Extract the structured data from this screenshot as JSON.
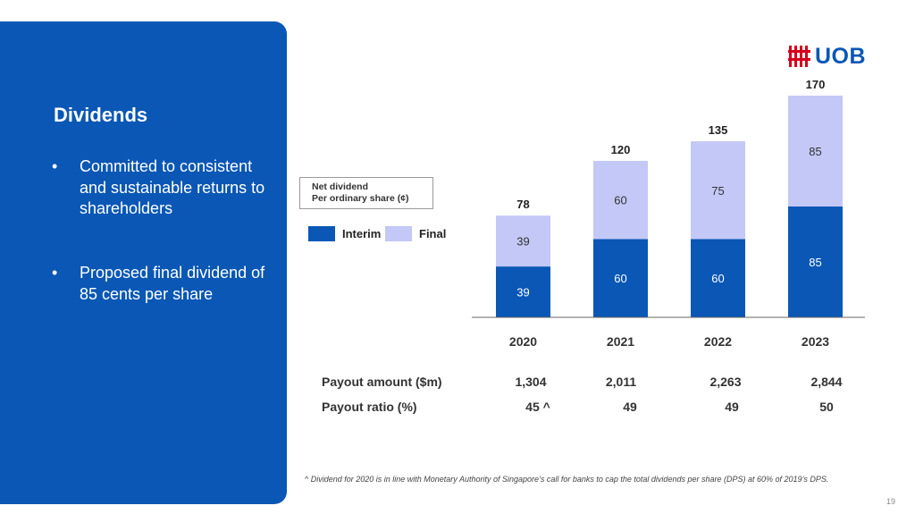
{
  "slide": {
    "title": "Dividends",
    "bullets": [
      "Committed to consistent and sustainable returns to shareholders",
      "Proposed final dividend of 85 cents per share"
    ],
    "bullet_symbol": "•",
    "logo_text": "UOB",
    "page_number": "19",
    "footnote": "^ Dividend for 2020 is in line with Monetary Authority of Singapore’s call for banks to cap the total dividends per share (DPS) at 60% of 2019’s DPS."
  },
  "legend_box": {
    "line1": "Net dividend",
    "line2": "Per ordinary share (¢)"
  },
  "table": {
    "rows": [
      {
        "label": "Payout amount ($m)",
        "values": [
          "1,304",
          "2,011",
          "2,263",
          "2,844"
        ]
      },
      {
        "label": "Payout ratio (%)",
        "values": [
          "45 ^",
          "49",
          "49",
          "50"
        ]
      }
    ]
  },
  "colors": {
    "panel": "#0a57b5",
    "interim": "#0a57b5",
    "final": "#c3c8f7",
    "logo_red": "#d6001c"
  },
  "chart_data": {
    "type": "bar",
    "stacked": true,
    "categories": [
      "2020",
      "2021",
      "2022",
      "2023"
    ],
    "series": [
      {
        "name": "Interim",
        "values": [
          39,
          60,
          60,
          85
        ]
      },
      {
        "name": "Final",
        "values": [
          39,
          60,
          75,
          85
        ]
      }
    ],
    "totals": [
      78,
      120,
      135,
      170
    ],
    "ylim": [
      0,
      170
    ],
    "legend": [
      "Interim",
      "Final"
    ],
    "legend_position": "left",
    "grid": false
  }
}
